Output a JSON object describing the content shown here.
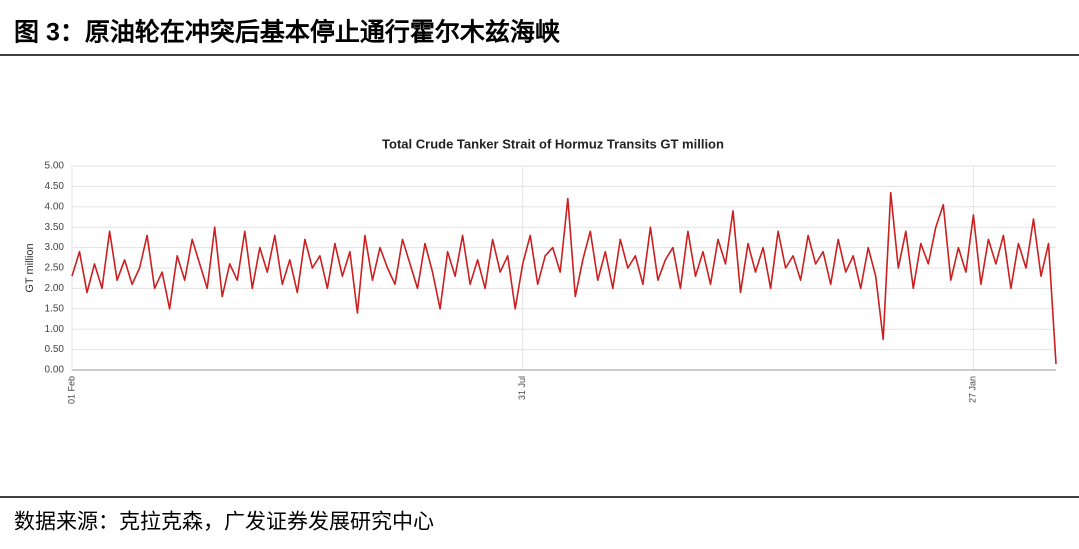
{
  "figure_title": "图 3：原油轮在冲突后基本停止通行霍尔木兹海峡",
  "source": "数据来源：克拉克森，广发证券发展研究中心",
  "chart_data": {
    "type": "line",
    "title": "Total Crude Tanker Strait of Hormuz Transits GT million",
    "y_label": "GT million",
    "categories": [
      "01 Feb",
      null,
      null,
      null,
      null,
      null,
      null,
      null,
      null,
      null,
      null,
      null,
      null,
      null,
      null,
      null,
      null,
      null,
      null,
      null,
      null,
      null,
      null,
      null,
      null,
      null,
      null,
      null,
      null,
      null,
      null,
      null,
      null,
      null,
      null,
      null,
      null,
      null,
      null,
      null,
      null,
      null,
      null,
      null,
      null,
      null,
      null,
      null,
      null,
      null,
      null,
      null,
      null,
      null,
      null,
      null,
      null,
      null,
      null,
      null,
      "31 Jul",
      null,
      null,
      null,
      null,
      null,
      null,
      null,
      null,
      null,
      null,
      null,
      null,
      null,
      null,
      null,
      null,
      null,
      null,
      null,
      null,
      null,
      null,
      null,
      null,
      null,
      null,
      null,
      null,
      null,
      null,
      null,
      null,
      null,
      null,
      null,
      null,
      null,
      null,
      null,
      null,
      null,
      null,
      null,
      null,
      null,
      null,
      null,
      null,
      null,
      null,
      null,
      null,
      null,
      null,
      null,
      null,
      null,
      null,
      null,
      "27 Jan",
      null,
      null,
      null,
      null,
      null,
      null,
      null,
      null,
      null,
      null,
      null
    ],
    "series": [
      {
        "name": "Total Crude Tanker Strait of Hormuz Transits",
        "color": "#cc1f1f",
        "values": [
          2.3,
          2.9,
          1.9,
          2.6,
          2.0,
          3.4,
          2.2,
          2.7,
          2.1,
          2.5,
          3.3,
          2.0,
          2.4,
          1.5,
          2.8,
          2.2,
          3.2,
          2.6,
          2.0,
          3.5,
          1.8,
          2.6,
          2.2,
          3.4,
          2.0,
          3.0,
          2.4,
          3.3,
          2.1,
          2.7,
          1.9,
          3.2,
          2.5,
          2.8,
          2.0,
          3.1,
          2.3,
          2.9,
          1.4,
          3.3,
          2.2,
          3.0,
          2.5,
          2.1,
          3.2,
          2.6,
          2.0,
          3.1,
          2.4,
          1.5,
          2.9,
          2.3,
          3.3,
          2.1,
          2.7,
          2.0,
          3.2,
          2.4,
          2.8,
          1.5,
          2.6,
          3.3,
          2.1,
          2.8,
          3.0,
          2.4,
          4.2,
          1.8,
          2.7,
          3.4,
          2.2,
          2.9,
          2.0,
          3.2,
          2.5,
          2.8,
          2.1,
          3.5,
          2.2,
          2.7,
          3.0,
          2.0,
          3.4,
          2.3,
          2.9,
          2.1,
          3.2,
          2.6,
          3.9,
          1.9,
          3.1,
          2.4,
          3.0,
          2.0,
          3.4,
          2.5,
          2.8,
          2.2,
          3.3,
          2.6,
          2.9,
          2.1,
          3.2,
          2.4,
          2.8,
          2.0,
          3.0,
          2.3,
          0.75,
          4.35,
          2.5,
          3.4,
          2.0,
          3.1,
          2.6,
          3.5,
          4.05,
          2.2,
          3.0,
          2.4,
          3.8,
          2.1,
          3.2,
          2.6,
          3.3,
          2.0,
          3.1,
          2.5,
          3.7,
          2.3,
          3.1,
          0.15
        ]
      }
    ],
    "ylim": [
      0,
      5
    ],
    "yticks": [
      {
        "value": 0,
        "label": "0.00"
      },
      {
        "value": 0.5,
        "label": "0.50"
      },
      {
        "value": 1,
        "label": "1.00"
      },
      {
        "value": 1.5,
        "label": "1.50"
      },
      {
        "value": 2,
        "label": "2.00"
      },
      {
        "value": 2.5,
        "label": "2.50"
      },
      {
        "value": 3,
        "label": "3.00"
      },
      {
        "value": 3.5,
        "label": "3.50"
      },
      {
        "value": 4,
        "label": "4.00"
      },
      {
        "value": 4.5,
        "label": "4.50"
      },
      {
        "value": 5,
        "label": "5.00"
      }
    ],
    "grid": true
  }
}
